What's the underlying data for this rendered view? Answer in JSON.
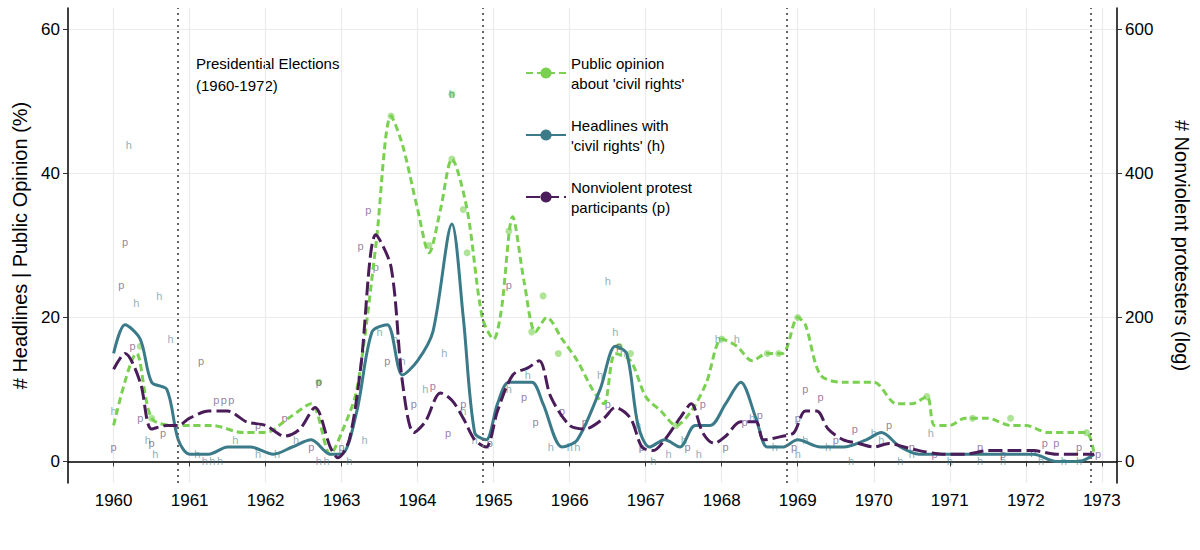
{
  "chart_data": {
    "type": "line",
    "ylabel": "# Headlines | Public Opinion (%)",
    "y2label": "# Nonviolent protesters (log)",
    "annotation": "Presidential Elections\n(1960-1972)",
    "election_lines": [
      1960.85,
      1964.85,
      1968.85,
      1972.85
    ],
    "xlim": [
      1959.4,
      1973.2
    ],
    "xticks": [
      1960,
      1961,
      1962,
      1963,
      1964,
      1965,
      1966,
      1967,
      1968,
      1969,
      1970,
      1971,
      1972,
      1973
    ],
    "ylim": [
      -3,
      63
    ],
    "yticks": [
      0,
      20,
      40,
      60
    ],
    "y2lim": [
      -30,
      630
    ],
    "y2ticks": [
      0,
      200,
      400,
      600
    ],
    "log": "y",
    "grid": true,
    "legend": "top",
    "series": [
      {
        "name": "Public opinion\nabout 'civil rights'",
        "color": "#7ad151",
        "line_style": "dashed",
        "x": [
          1960.0,
          1960.3,
          1960.5,
          1960.8,
          1961.0,
          1961.3,
          1961.7,
          1962.0,
          1962.3,
          1962.6,
          1962.85,
          1963.0,
          1963.2,
          1963.45,
          1963.65,
          1963.8,
          1964.0,
          1964.15,
          1964.3,
          1964.45,
          1964.65,
          1964.85,
          1965.0,
          1965.1,
          1965.25,
          1965.4,
          1965.55,
          1965.7,
          1965.9,
          1966.1,
          1966.3,
          1966.45,
          1966.6,
          1966.8,
          1967.0,
          1967.2,
          1967.4,
          1967.6,
          1967.8,
          1968.0,
          1968.2,
          1968.4,
          1968.6,
          1968.8,
          1969.0,
          1969.1,
          1969.3,
          1969.6,
          1970.0,
          1970.3,
          1970.5,
          1970.7,
          1970.8,
          1971.0,
          1971.2,
          1971.5,
          1971.8,
          1972.0,
          1972.3,
          1972.6,
          1972.8,
          1972.9
        ],
        "values": [
          5,
          15,
          6,
          5,
          5,
          5,
          4,
          4,
          6,
          8,
          1,
          4,
          10,
          30,
          48,
          44,
          35,
          29,
          35,
          42,
          35,
          20,
          17,
          21,
          34,
          25,
          18,
          20,
          17,
          14,
          10,
          8,
          15,
          14,
          9,
          7,
          5,
          7,
          11,
          17,
          16,
          14,
          15,
          15,
          20,
          19,
          12,
          11,
          11,
          8,
          8,
          9,
          5,
          5,
          6,
          6,
          5,
          5,
          4,
          4,
          4,
          1
        ],
        "points": {
          "marker": "circle",
          "x": [
            1960.35,
            1960.5,
            1962.7,
            1963.65,
            1964.15,
            1964.45,
            1964.45,
            1964.6,
            1964.65,
            1965.2,
            1965.5,
            1965.65,
            1965.85,
            1966.65,
            1966.8,
            1967.4,
            1968.0,
            1968.6,
            1968.75,
            1969.0,
            1970.7,
            1971.3,
            1971.8,
            1972.8
          ],
          "values": [
            16,
            6,
            11,
            48,
            30,
            51,
            42,
            35,
            29,
            32,
            18,
            23,
            15,
            16,
            15,
            5,
            17,
            15,
            15,
            20,
            9,
            6,
            6,
            4
          ]
        }
      },
      {
        "name": "Headlines with\n'civil rights' (h)",
        "color": "#3b7a89",
        "line_style": "solid",
        "x": [
          1960.0,
          1960.15,
          1960.35,
          1960.5,
          1960.7,
          1960.85,
          1961.0,
          1961.25,
          1961.5,
          1961.8,
          1962.1,
          1962.35,
          1962.6,
          1962.85,
          1963.0,
          1963.2,
          1963.4,
          1963.6,
          1963.8,
          1964.0,
          1964.2,
          1964.45,
          1964.6,
          1964.75,
          1964.9,
          1965.05,
          1965.2,
          1965.5,
          1965.65,
          1965.9,
          1966.1,
          1966.4,
          1966.6,
          1966.75,
          1966.9,
          1967.05,
          1967.25,
          1967.45,
          1967.65,
          1967.85,
          1968.05,
          1968.25,
          1968.45,
          1968.6,
          1968.8,
          1969.0,
          1969.3,
          1969.6,
          1969.9,
          1970.1,
          1970.35,
          1970.6,
          1970.9,
          1971.2,
          1971.5,
          1971.8,
          1972.1,
          1972.4,
          1972.7,
          1972.9
        ],
        "values": [
          15,
          19,
          17,
          11,
          10,
          3,
          1,
          1,
          2,
          2,
          1,
          2,
          3,
          1,
          1,
          7,
          18,
          19,
          12,
          14,
          18,
          33,
          20,
          4,
          3,
          8,
          11,
          11,
          8,
          2,
          3,
          10,
          16,
          15,
          5,
          2,
          3,
          2,
          5,
          5,
          8,
          11,
          6,
          2,
          2,
          3,
          2,
          2,
          3,
          4,
          2,
          1,
          1,
          1,
          1,
          1,
          1,
          0,
          0,
          1
        ],
        "points": {
          "marker": "h",
          "x": [
            1960.0,
            1960.2,
            1960.3,
            1960.45,
            1960.55,
            1960.6,
            1960.75,
            1961.1,
            1961.2,
            1961.3,
            1961.4,
            1961.6,
            1961.9,
            1962.15,
            1962.4,
            1962.7,
            1962.8,
            1963.1,
            1963.3,
            1963.5,
            1963.7,
            1963.8,
            1964.1,
            1964.35,
            1964.45,
            1964.6,
            1964.75,
            1965.2,
            1965.45,
            1965.75,
            1966.0,
            1966.1,
            1966.4,
            1966.5,
            1966.6,
            1966.7,
            1966.9,
            1967.1,
            1967.3,
            1967.5,
            1967.7,
            1967.95,
            1968.2,
            1968.4,
            1968.7,
            1969.0,
            1969.1,
            1969.4,
            1969.7,
            1970.0,
            1970.1,
            1970.35,
            1970.5,
            1970.75,
            1971.0,
            1971.4,
            1971.7,
            1972.2,
            1972.5,
            1972.7
          ],
          "values": [
            7,
            44,
            22,
            3,
            1,
            23,
            17,
            1,
            0,
            0,
            0,
            3,
            1,
            1,
            3,
            0,
            0,
            0,
            3,
            18,
            17,
            14,
            10,
            15,
            51,
            7,
            3,
            10,
            12,
            2,
            2,
            2,
            12,
            25,
            18,
            15,
            5,
            0,
            1,
            3,
            1,
            17,
            17,
            6,
            2,
            1,
            3,
            2,
            0,
            4,
            3,
            0,
            1,
            4,
            0,
            0,
            0,
            0,
            0,
            0
          ]
        }
      },
      {
        "name": "Nonviolent protest\nparticipants (p)",
        "color": "#4a1d5a",
        "line_style": "longdash",
        "axis": "y2",
        "x": [
          1960.0,
          1960.15,
          1960.35,
          1960.5,
          1960.7,
          1960.85,
          1961.0,
          1961.25,
          1961.5,
          1961.75,
          1962.0,
          1962.25,
          1962.45,
          1962.65,
          1962.85,
          1962.95,
          1963.1,
          1963.25,
          1963.45,
          1963.65,
          1963.8,
          1963.95,
          1964.1,
          1964.3,
          1964.45,
          1964.6,
          1964.75,
          1964.9,
          1965.05,
          1965.25,
          1965.45,
          1965.6,
          1965.75,
          1966.0,
          1966.2,
          1966.45,
          1966.6,
          1966.8,
          1966.95,
          1967.1,
          1967.25,
          1967.45,
          1967.6,
          1967.75,
          1967.9,
          1968.05,
          1968.25,
          1968.45,
          1968.55,
          1968.8,
          1968.95,
          1969.1,
          1969.25,
          1969.4,
          1969.6,
          1969.8,
          1970.0,
          1970.2,
          1970.4,
          1970.6,
          1970.9,
          1971.2,
          1971.5,
          1971.8,
          1972.1,
          1972.4,
          1972.7,
          1972.9
        ],
        "values": [
          128,
          150,
          110,
          45,
          50,
          50,
          60,
          70,
          70,
          55,
          50,
          35,
          45,
          75,
          20,
          5,
          30,
          130,
          315,
          270,
          110,
          40,
          55,
          95,
          85,
          60,
          30,
          20,
          70,
          120,
          130,
          140,
          90,
          50,
          45,
          60,
          75,
          60,
          20,
          15,
          30,
          60,
          80,
          40,
          25,
          35,
          55,
          55,
          30,
          35,
          40,
          70,
          70,
          45,
          30,
          25,
          20,
          25,
          20,
          15,
          10,
          10,
          15,
          15,
          15,
          10,
          10,
          10
        ],
        "points": {
          "marker": "p",
          "x": [
            1960.0,
            1960.1,
            1960.15,
            1960.25,
            1960.35,
            1960.5,
            1960.65,
            1961.15,
            1961.35,
            1961.45,
            1961.55,
            1961.9,
            1962.25,
            1962.6,
            1962.7,
            1963.0,
            1963.25,
            1963.35,
            1963.45,
            1963.6,
            1963.95,
            1964.2,
            1964.4,
            1964.6,
            1964.95,
            1965.2,
            1965.4,
            1965.55,
            1965.9,
            1966.2,
            1966.5,
            1966.65,
            1966.95,
            1967.55,
            1967.75,
            1968.05,
            1968.3,
            1968.5,
            1968.95,
            1969.0,
            1969.1,
            1969.3,
            1969.5,
            1969.75,
            1970.2,
            1970.5,
            1970.8,
            1971.4,
            1971.7,
            1972.1,
            1972.25,
            1972.4,
            1972.7,
            1972.95
          ],
          "values": [
            20,
            245,
            305,
            160,
            60,
            25,
            40,
            140,
            85,
            85,
            85,
            50,
            60,
            20,
            110,
            20,
            300,
            350,
            270,
            140,
            80,
            105,
            40,
            80,
            25,
            245,
            90,
            55,
            70,
            55,
            80,
            160,
            20,
            20,
            80,
            20,
            55,
            65,
            20,
            60,
            100,
            90,
            30,
            45,
            50,
            20,
            10,
            20,
            10,
            15,
            25,
            25,
            20,
            10
          ]
        }
      }
    ]
  }
}
